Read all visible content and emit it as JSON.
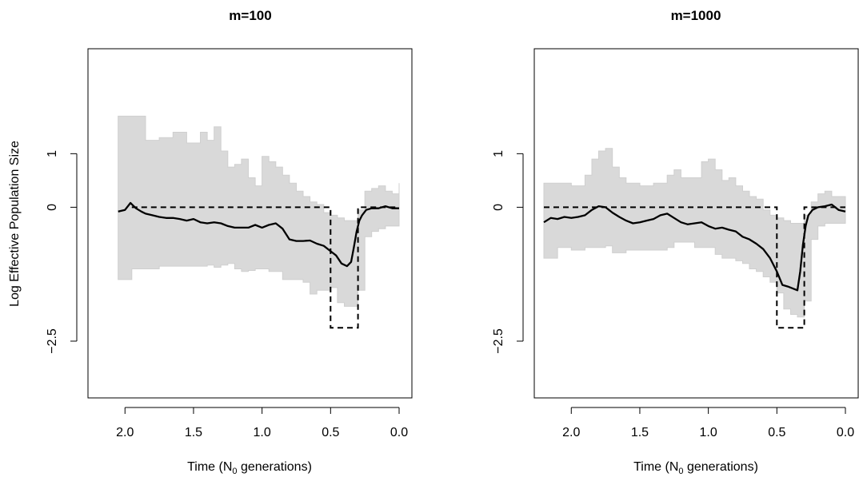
{
  "y_axis_label": "Log Effective Population Size",
  "chart_data": [
    {
      "type": "line",
      "title": "m=100",
      "xlabel": "Time (N0 generations)",
      "xlabel_parts": {
        "main": "Time (N",
        "sub": "0",
        "tail": " generations)"
      },
      "ylabel": "Log Effective Population Size",
      "x_reversed": true,
      "xlim": [
        2.2,
        0.0
      ],
      "ylim": [
        -3.5,
        2.9
      ],
      "x_ticks": [
        2.0,
        1.5,
        1.0,
        0.5,
        0.0
      ],
      "x_tick_labels": [
        "2.0",
        "1.5",
        "1.0",
        "0.5",
        "0.0"
      ],
      "y_ticks": [
        1,
        0,
        -2.5
      ],
      "y_tick_labels": [
        "1",
        "0",
        "−2.5"
      ],
      "grid": false,
      "series": [
        {
          "role": "posterior-median",
          "style": "solid",
          "color": "#000000",
          "x": [
            2.05,
            2.0,
            1.96,
            1.92,
            1.88,
            1.85,
            1.8,
            1.75,
            1.7,
            1.65,
            1.6,
            1.55,
            1.5,
            1.45,
            1.4,
            1.35,
            1.3,
            1.25,
            1.2,
            1.15,
            1.1,
            1.05,
            1.0,
            0.95,
            0.9,
            0.85,
            0.8,
            0.75,
            0.7,
            0.65,
            0.6,
            0.55,
            0.5,
            0.46,
            0.42,
            0.38,
            0.35,
            0.33,
            0.31,
            0.29,
            0.27,
            0.24,
            0.2,
            0.15,
            0.1,
            0.05,
            0.0
          ],
          "y": [
            -0.08,
            -0.05,
            0.08,
            -0.02,
            -0.08,
            -0.12,
            -0.15,
            -0.18,
            -0.2,
            -0.2,
            -0.22,
            -0.25,
            -0.22,
            -0.28,
            -0.3,
            -0.28,
            -0.3,
            -0.35,
            -0.38,
            -0.38,
            -0.38,
            -0.33,
            -0.38,
            -0.33,
            -0.3,
            -0.4,
            -0.6,
            -0.63,
            -0.63,
            -0.62,
            -0.68,
            -0.72,
            -0.82,
            -0.9,
            -1.05,
            -1.1,
            -1.02,
            -0.75,
            -0.45,
            -0.25,
            -0.15,
            -0.05,
            -0.02,
            -0.02,
            0.02,
            -0.02,
            -0.02
          ]
        },
        {
          "role": "true-history",
          "style": "dashed",
          "color": "#000000",
          "x": [
            1.95,
            0.5,
            0.5,
            0.3,
            0.3,
            0.0
          ],
          "y": [
            0.0,
            0.0,
            -2.25,
            -2.25,
            0.0,
            0.0
          ]
        },
        {
          "role": "credible-band",
          "style": "area",
          "color": "#d9d9d9",
          "x": [
            2.05,
            1.95,
            1.85,
            1.75,
            1.65,
            1.55,
            1.45,
            1.4,
            1.35,
            1.3,
            1.25,
            1.2,
            1.15,
            1.1,
            1.05,
            1.0,
            0.95,
            0.9,
            0.85,
            0.8,
            0.75,
            0.7,
            0.65,
            0.6,
            0.55,
            0.5,
            0.45,
            0.4,
            0.35,
            0.3,
            0.25,
            0.2,
            0.15,
            0.1,
            0.05,
            0.0
          ],
          "upper": [
            1.7,
            1.7,
            1.25,
            1.3,
            1.4,
            1.2,
            1.4,
            1.25,
            1.5,
            1.05,
            0.75,
            0.8,
            0.9,
            0.55,
            0.4,
            0.95,
            0.85,
            0.75,
            0.6,
            0.45,
            0.3,
            0.2,
            0.1,
            0.05,
            -0.1,
            -0.15,
            -0.2,
            -0.25,
            -0.25,
            -0.05,
            0.3,
            0.35,
            0.4,
            0.3,
            0.25,
            0.45
          ],
          "lower": [
            -1.35,
            -1.15,
            -1.15,
            -1.1,
            -1.1,
            -1.1,
            -1.1,
            -1.08,
            -1.12,
            -1.08,
            -1.05,
            -1.15,
            -1.2,
            -1.18,
            -1.15,
            -1.15,
            -1.2,
            -1.2,
            -1.35,
            -1.35,
            -1.35,
            -1.4,
            -1.62,
            -1.55,
            -1.55,
            -1.5,
            -1.78,
            -1.85,
            -1.85,
            -1.55,
            -0.55,
            -0.45,
            -0.4,
            -0.35,
            -0.35,
            -0.35
          ]
        }
      ]
    },
    {
      "type": "line",
      "title": "m=1000",
      "xlabel": "Time (N0 generations)",
      "xlabel_parts": {
        "main": "Time (N",
        "sub": "0",
        "tail": " generations)"
      },
      "ylabel": "Log Effective Population Size",
      "x_reversed": true,
      "xlim": [
        2.2,
        0.0
      ],
      "ylim": [
        -3.5,
        2.9
      ],
      "x_ticks": [
        2.0,
        1.5,
        1.0,
        0.5,
        0.0
      ],
      "x_tick_labels": [
        "2.0",
        "1.5",
        "1.0",
        "0.5",
        "0.0"
      ],
      "y_ticks": [
        1,
        0,
        -2.5
      ],
      "y_tick_labels": [
        "1",
        "0",
        "−2.5"
      ],
      "grid": false,
      "series": [
        {
          "role": "posterior-median",
          "style": "solid",
          "color": "#000000",
          "x": [
            2.2,
            2.15,
            2.1,
            2.05,
            2.0,
            1.95,
            1.9,
            1.85,
            1.8,
            1.75,
            1.7,
            1.65,
            1.6,
            1.55,
            1.5,
            1.45,
            1.4,
            1.35,
            1.3,
            1.25,
            1.2,
            1.15,
            1.1,
            1.05,
            1.0,
            0.95,
            0.9,
            0.85,
            0.8,
            0.75,
            0.7,
            0.65,
            0.6,
            0.55,
            0.5,
            0.46,
            0.42,
            0.38,
            0.35,
            0.33,
            0.31,
            0.29,
            0.27,
            0.24,
            0.2,
            0.15,
            0.1,
            0.05,
            0.0
          ],
          "y": [
            -0.28,
            -0.2,
            -0.22,
            -0.18,
            -0.2,
            -0.18,
            -0.15,
            -0.05,
            0.02,
            0.0,
            -0.1,
            -0.18,
            -0.25,
            -0.3,
            -0.28,
            -0.25,
            -0.22,
            -0.15,
            -0.12,
            -0.2,
            -0.28,
            -0.32,
            -0.3,
            -0.28,
            -0.35,
            -0.4,
            -0.38,
            -0.42,
            -0.45,
            -0.55,
            -0.6,
            -0.68,
            -0.78,
            -0.95,
            -1.2,
            -1.45,
            -1.48,
            -1.52,
            -1.55,
            -1.2,
            -0.7,
            -0.35,
            -0.15,
            -0.05,
            0.0,
            0.02,
            0.05,
            -0.05,
            -0.08
          ]
        },
        {
          "role": "true-history",
          "style": "dashed",
          "color": "#000000",
          "x": [
            2.2,
            0.5,
            0.5,
            0.3,
            0.3,
            0.0
          ],
          "y": [
            0.0,
            0.0,
            -2.25,
            -2.25,
            0.0,
            0.0
          ]
        },
        {
          "role": "credible-band",
          "style": "area",
          "color": "#d9d9d9",
          "x": [
            2.2,
            2.1,
            2.0,
            1.9,
            1.85,
            1.8,
            1.75,
            1.7,
            1.65,
            1.6,
            1.5,
            1.4,
            1.3,
            1.25,
            1.2,
            1.1,
            1.05,
            1.0,
            0.95,
            0.9,
            0.85,
            0.8,
            0.75,
            0.7,
            0.65,
            0.6,
            0.55,
            0.5,
            0.45,
            0.4,
            0.35,
            0.3,
            0.25,
            0.2,
            0.15,
            0.1,
            0.05,
            0.0
          ],
          "upper": [
            0.45,
            0.45,
            0.4,
            0.6,
            0.9,
            1.05,
            1.1,
            0.75,
            0.55,
            0.45,
            0.4,
            0.45,
            0.6,
            0.7,
            0.55,
            0.55,
            0.85,
            0.9,
            0.7,
            0.5,
            0.55,
            0.4,
            0.3,
            0.2,
            0.15,
            -0.05,
            -0.15,
            -0.2,
            -0.25,
            -0.3,
            -0.3,
            -0.15,
            0.1,
            0.25,
            0.3,
            0.2,
            0.2,
            0.15
          ],
          "lower": [
            -0.95,
            -0.75,
            -0.8,
            -0.75,
            -0.75,
            -0.75,
            -0.72,
            -0.85,
            -0.85,
            -0.8,
            -0.8,
            -0.8,
            -0.75,
            -0.65,
            -0.65,
            -0.75,
            -0.75,
            -0.75,
            -0.88,
            -0.95,
            -0.95,
            -1.0,
            -1.05,
            -1.15,
            -1.2,
            -1.3,
            -1.4,
            -1.6,
            -1.9,
            -2.0,
            -2.05,
            -1.75,
            -0.6,
            -0.35,
            -0.3,
            -0.3,
            -0.3,
            -0.3
          ]
        }
      ]
    }
  ]
}
